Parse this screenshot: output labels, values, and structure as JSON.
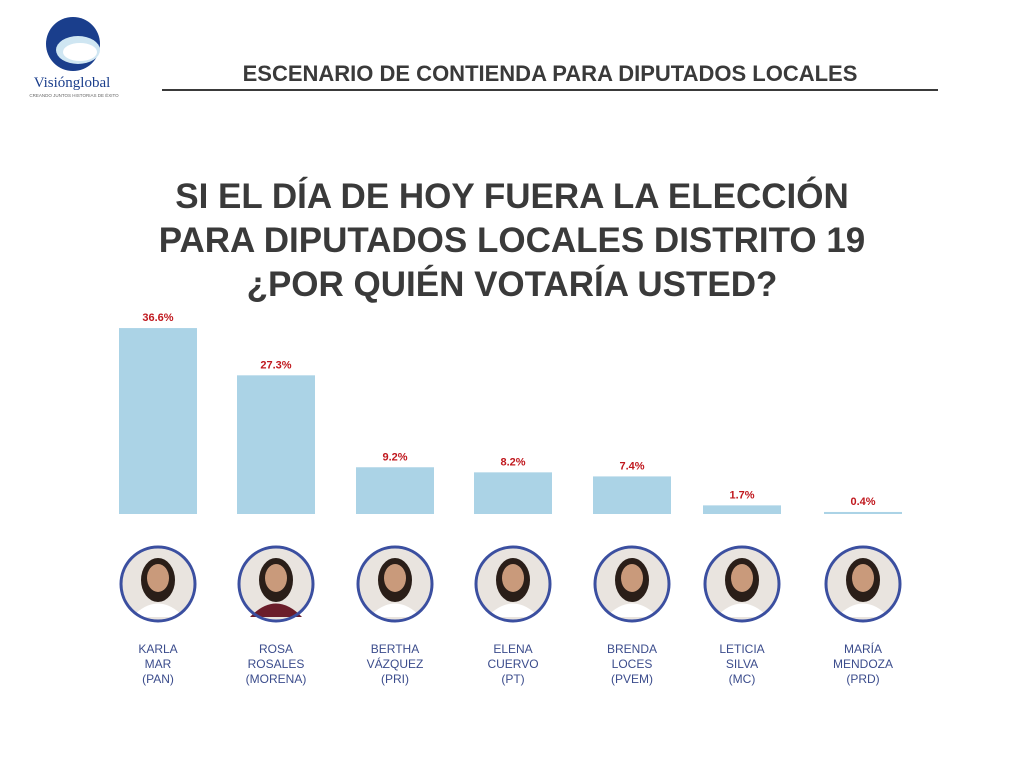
{
  "brand": {
    "name": "Visiónglobal",
    "tagline": "CREANDO JUNTOS HISTORIAS DE ÉXITO"
  },
  "header": {
    "title": "ESCENARIO DE CONTIENDA PARA DIPUTADOS LOCALES"
  },
  "chart_data": {
    "type": "bar",
    "title": [
      "SI EL DÍA DE HOY FUERA LA ELECCIÓN",
      "PARA DIPUTADOS LOCALES DISTRITO 19",
      "¿POR QUIÉN VOTARÍA USTED?"
    ],
    "categories": [
      [
        "KARLA",
        "MAR",
        "(PAN)"
      ],
      [
        "ROSA",
        "ROSALES",
        "(MORENA)"
      ],
      [
        "BERTHA",
        "VÁZQUEZ",
        "(PRI)"
      ],
      [
        "ELENA",
        "CUERVO",
        "(PT)"
      ],
      [
        "BRENDA",
        "LOCES",
        "(PVEM)"
      ],
      [
        "LETICIA",
        "SILVA",
        "(MC)"
      ],
      [
        "MARÍA",
        "MENDOZA",
        "(PRD)"
      ]
    ],
    "values": [
      36.6,
      27.3,
      9.2,
      8.2,
      7.4,
      1.7,
      0.4
    ],
    "value_labels": [
      "36.6%",
      "27.3%",
      "9.2%",
      "8.2%",
      "7.4%",
      "1.7%",
      "0.4%"
    ],
    "color": "#abd3e6"
  }
}
